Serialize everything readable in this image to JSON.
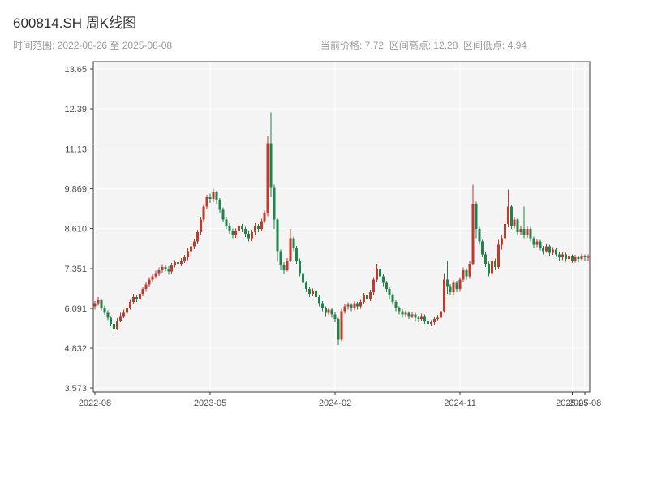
{
  "header": {
    "title": "600814.SH 周K线图",
    "subtitle_left": "时间范围: 2022-08-26 至 2025-08-08",
    "subtitle_right": "当前价格: 7.72  区间高点: 12.28  区间低点: 4.94"
  },
  "chart_data": {
    "type": "candlestick",
    "symbol": "600814.SH",
    "title": "600814.SH 周K线图",
    "frequency": "weekly",
    "date_range": {
      "start": "2022-08-26",
      "end": "2025-08-08"
    },
    "current_price": 7.72,
    "range_high": 12.28,
    "range_low": 4.94,
    "grid": true,
    "ylim": [
      3.45,
      13.88
    ],
    "y_tick_values": [
      13.65,
      12.39,
      11.13,
      9.869,
      8.61,
      7.351,
      6.091,
      4.832,
      3.573
    ],
    "y_tick_labels": [
      "13.65",
      "12.39",
      "11.13",
      "9.869",
      "8.610",
      "7.351",
      "6.091",
      "4.832",
      "3.573"
    ],
    "x_ticks": [
      {
        "label": "2022-08",
        "week": 0
      },
      {
        "label": "2023-05",
        "week": 36
      },
      {
        "label": "2024-02",
        "week": 75
      },
      {
        "label": "2024-11",
        "week": 114
      },
      {
        "label": "2025-07",
        "week": 149
      },
      {
        "label": "2025-08",
        "week": 153
      }
    ],
    "colors": {
      "up": "#c0392b",
      "down": "#1e8449",
      "panel_bg": "#f4f4f5",
      "grid": "#ffffff",
      "spine": "#3c3c3c",
      "tick_text": "#4d4d4d"
    },
    "candles_format": "[open, high, low, close] per week, red=up green=down",
    "candles": [
      [
        6.15,
        6.32,
        6.05,
        6.25
      ],
      [
        6.25,
        6.45,
        6.18,
        6.35
      ],
      [
        6.35,
        6.4,
        6.02,
        6.1
      ],
      [
        6.1,
        6.18,
        5.88,
        5.95
      ],
      [
        5.95,
        6.02,
        5.72,
        5.8
      ],
      [
        5.8,
        5.85,
        5.52,
        5.6
      ],
      [
        5.6,
        5.68,
        5.35,
        5.45
      ],
      [
        5.45,
        5.78,
        5.4,
        5.7
      ],
      [
        5.7,
        5.95,
        5.65,
        5.85
      ],
      [
        5.85,
        6.05,
        5.78,
        5.95
      ],
      [
        5.95,
        6.18,
        5.9,
        6.1
      ],
      [
        6.1,
        6.38,
        6.05,
        6.3
      ],
      [
        6.3,
        6.55,
        6.22,
        6.45
      ],
      [
        6.45,
        6.52,
        6.3,
        6.4
      ],
      [
        6.4,
        6.62,
        6.33,
        6.55
      ],
      [
        6.55,
        6.78,
        6.48,
        6.7
      ],
      [
        6.7,
        6.92,
        6.62,
        6.85
      ],
      [
        6.85,
        7.08,
        6.78,
        7.0
      ],
      [
        7.0,
        7.18,
        6.92,
        7.1
      ],
      [
        7.1,
        7.28,
        7.02,
        7.2
      ],
      [
        7.2,
        7.38,
        7.12,
        7.3
      ],
      [
        7.3,
        7.48,
        7.22,
        7.4
      ],
      [
        7.4,
        7.46,
        7.26,
        7.35
      ],
      [
        7.35,
        7.42,
        7.15,
        7.25
      ],
      [
        7.25,
        7.52,
        7.18,
        7.45
      ],
      [
        7.45,
        7.62,
        7.38,
        7.55
      ],
      [
        7.55,
        7.6,
        7.4,
        7.5
      ],
      [
        7.5,
        7.68,
        7.42,
        7.6
      ],
      [
        7.6,
        7.78,
        7.52,
        7.7
      ],
      [
        7.7,
        7.98,
        7.62,
        7.9
      ],
      [
        7.9,
        8.12,
        7.82,
        8.05
      ],
      [
        8.05,
        8.28,
        7.96,
        8.2
      ],
      [
        8.2,
        8.58,
        8.12,
        8.5
      ],
      [
        8.5,
        8.98,
        8.42,
        8.9
      ],
      [
        8.9,
        9.38,
        8.82,
        9.3
      ],
      [
        9.3,
        9.68,
        9.22,
        9.6
      ],
      [
        9.6,
        9.72,
        9.42,
        9.55
      ],
      [
        9.55,
        9.87,
        9.45,
        9.75
      ],
      [
        9.75,
        9.8,
        9.4,
        9.5
      ],
      [
        9.5,
        9.58,
        9.1,
        9.2
      ],
      [
        9.2,
        9.28,
        8.8,
        8.9
      ],
      [
        8.9,
        8.98,
        8.6,
        8.7
      ],
      [
        8.7,
        8.78,
        8.45,
        8.55
      ],
      [
        8.55,
        8.62,
        8.3,
        8.4
      ],
      [
        8.4,
        8.62,
        8.32,
        8.55
      ],
      [
        8.55,
        8.78,
        8.48,
        8.7
      ],
      [
        8.7,
        8.76,
        8.5,
        8.6
      ],
      [
        8.6,
        8.66,
        8.35,
        8.45
      ],
      [
        8.45,
        8.52,
        8.2,
        8.3
      ],
      [
        8.3,
        8.58,
        8.22,
        8.5
      ],
      [
        8.5,
        8.78,
        8.42,
        8.7
      ],
      [
        8.7,
        8.76,
        8.5,
        8.6
      ],
      [
        8.6,
        8.92,
        8.52,
        8.85
      ],
      [
        8.85,
        9.18,
        8.78,
        9.1
      ],
      [
        9.1,
        11.55,
        9.0,
        11.3
      ],
      [
        11.3,
        12.28,
        9.6,
        9.9
      ],
      [
        9.9,
        10.0,
        8.6,
        8.9
      ],
      [
        8.9,
        8.95,
        7.6,
        7.9
      ],
      [
        7.9,
        7.95,
        7.3,
        7.45
      ],
      [
        7.45,
        7.55,
        7.18,
        7.3
      ],
      [
        7.3,
        7.68,
        7.25,
        7.6
      ],
      [
        7.6,
        8.6,
        7.55,
        8.3
      ],
      [
        8.3,
        8.36,
        7.9,
        8.0
      ],
      [
        8.0,
        8.06,
        7.5,
        7.6
      ],
      [
        7.6,
        7.66,
        7.1,
        7.2
      ],
      [
        7.2,
        7.26,
        6.8,
        6.9
      ],
      [
        6.9,
        6.96,
        6.6,
        6.7
      ],
      [
        6.7,
        6.76,
        6.45,
        6.55
      ],
      [
        6.55,
        6.72,
        6.48,
        6.65
      ],
      [
        6.65,
        6.7,
        6.35,
        6.45
      ],
      [
        6.45,
        6.5,
        6.15,
        6.25
      ],
      [
        6.25,
        6.32,
        6.0,
        6.1
      ],
      [
        6.1,
        6.16,
        5.85,
        5.95
      ],
      [
        5.95,
        6.12,
        5.88,
        6.05
      ],
      [
        6.05,
        6.1,
        5.8,
        5.9
      ],
      [
        5.9,
        5.96,
        5.65,
        5.75
      ],
      [
        5.75,
        5.8,
        4.94,
        5.1
      ],
      [
        5.1,
        6.08,
        5.05,
        6.0
      ],
      [
        6.0,
        6.22,
        5.92,
        6.15
      ],
      [
        6.15,
        6.28,
        6.05,
        6.2
      ],
      [
        6.2,
        6.26,
        6.0,
        6.1
      ],
      [
        6.1,
        6.32,
        6.02,
        6.25
      ],
      [
        6.25,
        6.3,
        6.05,
        6.15
      ],
      [
        6.15,
        6.38,
        6.08,
        6.3
      ],
      [
        6.3,
        6.58,
        6.22,
        6.5
      ],
      [
        6.5,
        6.56,
        6.3,
        6.4
      ],
      [
        6.4,
        6.68,
        6.32,
        6.6
      ],
      [
        6.6,
        7.08,
        6.52,
        7.0
      ],
      [
        7.0,
        7.5,
        6.92,
        7.35
      ],
      [
        7.35,
        7.42,
        7.0,
        7.1
      ],
      [
        7.1,
        7.16,
        6.8,
        6.9
      ],
      [
        6.9,
        6.96,
        6.6,
        6.7
      ],
      [
        6.7,
        6.76,
        6.4,
        6.5
      ],
      [
        6.5,
        6.56,
        6.2,
        6.3
      ],
      [
        6.3,
        6.36,
        6.0,
        6.1
      ],
      [
        6.1,
        6.16,
        5.9,
        6.0
      ],
      [
        6.0,
        6.06,
        5.8,
        5.9
      ],
      [
        5.9,
        6.02,
        5.82,
        5.95
      ],
      [
        5.95,
        6.0,
        5.76,
        5.85
      ],
      [
        5.85,
        5.98,
        5.78,
        5.9
      ],
      [
        5.9,
        5.95,
        5.7,
        5.8
      ],
      [
        5.8,
        5.86,
        5.65,
        5.75
      ],
      [
        5.75,
        5.92,
        5.68,
        5.85
      ],
      [
        5.85,
        5.9,
        5.6,
        5.7
      ],
      [
        5.7,
        5.76,
        5.5,
        5.6
      ],
      [
        5.6,
        5.72,
        5.52,
        5.65
      ],
      [
        5.65,
        5.82,
        5.58,
        5.75
      ],
      [
        5.75,
        5.88,
        5.68,
        5.8
      ],
      [
        5.8,
        6.08,
        5.72,
        6.0
      ],
      [
        6.0,
        7.2,
        5.95,
        7.0
      ],
      [
        7.0,
        7.6,
        6.55,
        6.8
      ],
      [
        6.8,
        6.86,
        6.5,
        6.6
      ],
      [
        6.6,
        6.98,
        6.52,
        6.9
      ],
      [
        6.9,
        6.96,
        6.6,
        6.7
      ],
      [
        6.7,
        7.08,
        6.62,
        7.0
      ],
      [
        7.0,
        7.38,
        6.92,
        7.3
      ],
      [
        7.3,
        7.36,
        7.0,
        7.1
      ],
      [
        7.1,
        7.58,
        7.02,
        7.5
      ],
      [
        7.5,
        10.0,
        7.45,
        9.4
      ],
      [
        9.4,
        9.46,
        8.3,
        8.6
      ],
      [
        8.6,
        8.66,
        8.1,
        8.2
      ],
      [
        8.2,
        8.26,
        7.7,
        7.8
      ],
      [
        7.8,
        7.86,
        7.4,
        7.5
      ],
      [
        7.5,
        7.56,
        7.1,
        7.2
      ],
      [
        7.2,
        7.68,
        7.12,
        7.6
      ],
      [
        7.6,
        7.66,
        7.3,
        7.4
      ],
      [
        7.4,
        8.25,
        7.35,
        8.1
      ],
      [
        8.1,
        8.4,
        7.95,
        8.3
      ],
      [
        8.3,
        8.9,
        8.2,
        8.75
      ],
      [
        8.75,
        9.85,
        8.65,
        9.3
      ],
      [
        9.3,
        9.36,
        8.6,
        8.7
      ],
      [
        8.7,
        8.98,
        8.62,
        8.9
      ],
      [
        8.9,
        8.96,
        8.4,
        8.5
      ],
      [
        8.5,
        8.68,
        8.42,
        8.6
      ],
      [
        8.6,
        9.3,
        8.3,
        8.4
      ],
      [
        8.4,
        8.68,
        8.32,
        8.6
      ],
      [
        8.6,
        8.66,
        8.2,
        8.3
      ],
      [
        8.3,
        8.36,
        8.0,
        8.1
      ],
      [
        8.1,
        8.28,
        8.02,
        8.2
      ],
      [
        8.2,
        8.26,
        7.92,
        8.0
      ],
      [
        8.0,
        8.06,
        7.8,
        7.9
      ],
      [
        7.9,
        8.12,
        7.84,
        8.05
      ],
      [
        8.05,
        8.1,
        7.76,
        7.85
      ],
      [
        7.85,
        8.02,
        7.78,
        7.95
      ],
      [
        7.95,
        8.0,
        7.72,
        7.8
      ],
      [
        7.8,
        7.86,
        7.6,
        7.7
      ],
      [
        7.7,
        7.88,
        7.62,
        7.8
      ],
      [
        7.8,
        7.85,
        7.56,
        7.65
      ],
      [
        7.65,
        7.82,
        7.58,
        7.75
      ],
      [
        7.75,
        7.8,
        7.52,
        7.6
      ],
      [
        7.6,
        7.78,
        7.54,
        7.7
      ],
      [
        7.7,
        7.75,
        7.55,
        7.65
      ],
      [
        7.65,
        7.82,
        7.58,
        7.75
      ],
      [
        7.75,
        7.8,
        7.6,
        7.7
      ],
      [
        7.7,
        7.8,
        7.58,
        7.72
      ]
    ]
  }
}
